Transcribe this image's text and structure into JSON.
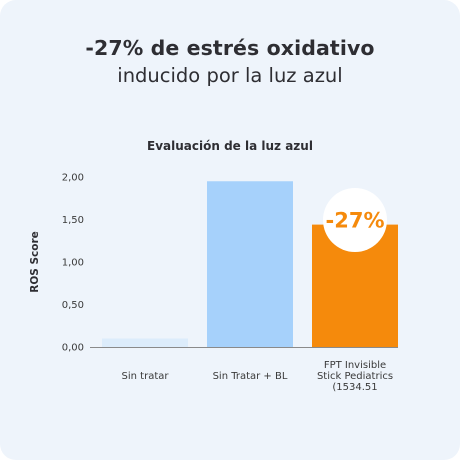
{
  "header": {
    "title": "-27% de estrés oxidativo",
    "subtitle": "inducido por la luz azul"
  },
  "chart_data": {
    "type": "bar",
    "title": "Evaluación de la luz azul",
    "xlabel": "",
    "ylabel": "ROS Score",
    "ylim": [
      0,
      2
    ],
    "yticks": [
      "0,00",
      "0,50",
      "1,00",
      "1,50",
      "2,00"
    ],
    "categories": [
      "Sin tratar",
      "Sin Tratar + BL",
      "FPT Invisible Stick Pediatrics (1534.51"
    ],
    "category_lines": [
      [
        "Sin tratar"
      ],
      [
        "Sin Tratar + BL"
      ],
      [
        "FPT Invisible",
        "Stick Pediatrics",
        "(1534.51"
      ]
    ],
    "values": [
      0.1,
      1.95,
      1.44
    ],
    "colors": [
      "#dcecfb",
      "#a6d1fb",
      "#f58a0c"
    ],
    "badge": {
      "text": "-27%",
      "bar_index": 2
    },
    "grid": false,
    "legend": "none"
  }
}
